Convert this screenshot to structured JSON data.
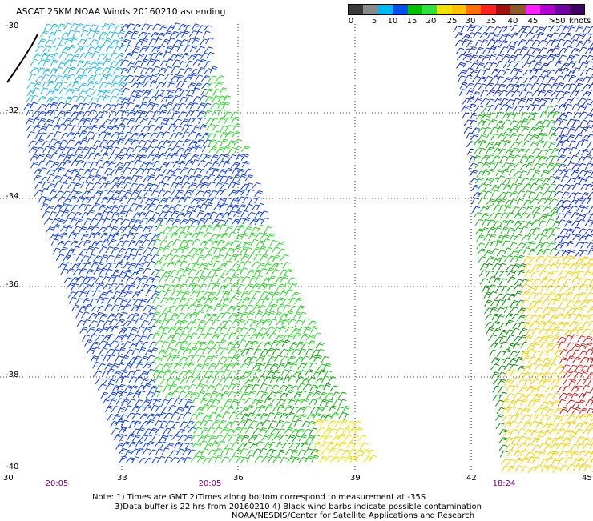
{
  "title": "ASCAT 25KM NOAA Winds 20160210 ascending",
  "scale": {
    "labels": [
      "0",
      "5",
      "10",
      "15",
      "20",
      "25",
      "30",
      "35",
      "40",
      "45",
      ">50"
    ],
    "units": "knots",
    "colors": [
      "#3a3a3a",
      "#8a8a8a",
      "#00b8f0",
      "#0050f0",
      "#00c000",
      "#30e040",
      "#f0e000",
      "#ffc000",
      "#ff7000",
      "#ff2020",
      "#a01010",
      "#8b5a2b",
      "#ff20ff",
      "#b000d0",
      "#7000a0",
      "#400060"
    ]
  },
  "lat_ticks": [
    "-30",
    "-32",
    "-34",
    "-36",
    "-38",
    "-40"
  ],
  "lon_ticks": [
    "30",
    "33",
    "36",
    "39",
    "42",
    "45"
  ],
  "pass_times": [
    "20:05",
    "20:05",
    "18:24"
  ],
  "notes": {
    "line1": "Note: 1) Times are GMT 2)Times along bottom correspond to measurement at -35S",
    "line2": "3)Data buffer is 22 hrs from 20160210 4) Black wind barbs indicate possible contamination",
    "line3": "NOAA/NESDIS/Center for Satellite Applications and Research"
  }
}
